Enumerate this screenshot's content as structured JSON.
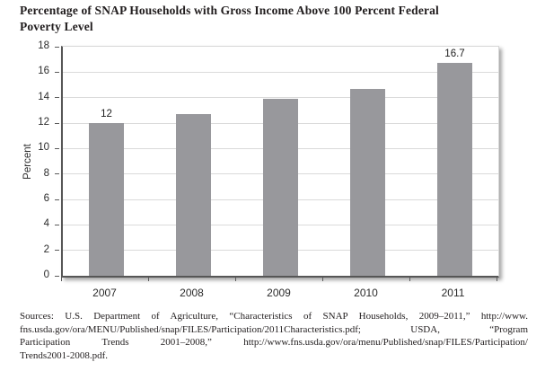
{
  "title": {
    "lines": [
      "Percentage of SNAP Households with Gross Income Above 100 Percent Federal",
      "Poverty Level"
    ]
  },
  "chart_data": {
    "type": "bar",
    "categories": [
      "2007",
      "2008",
      "2009",
      "2010",
      "2011"
    ],
    "values": [
      12,
      12.7,
      13.9,
      14.7,
      16.7
    ],
    "point_labels": [
      "12",
      "",
      "",
      "",
      "16.7"
    ],
    "title": "Percentage of SNAP Households with Gross Income Above 100 Percent Federal Poverty Level",
    "xlabel": "",
    "ylabel": "Percent",
    "ylim": [
      0,
      18
    ],
    "yticks": [
      0,
      2,
      4,
      6,
      8,
      10,
      12,
      14,
      16,
      18
    ],
    "grid": "horizontal",
    "legend": "none",
    "bar_color": "#98989c"
  },
  "sources": {
    "lines": [
      "Sources: U.S. Department of Agriculture, “Characteristics of SNAP Households, 2009–2011,” http://www.",
      "fns.usda.gov/ora/MENU/Published/snap/FILES/Participation/2011Characteristics.pdf; USDA, “Program",
      "Participation Trends 2001–2008,” http://www.fns.usda.gov/ora/menu/Published/snap/FILES/Participation/",
      "Trends2001-2008.pdf."
    ]
  }
}
